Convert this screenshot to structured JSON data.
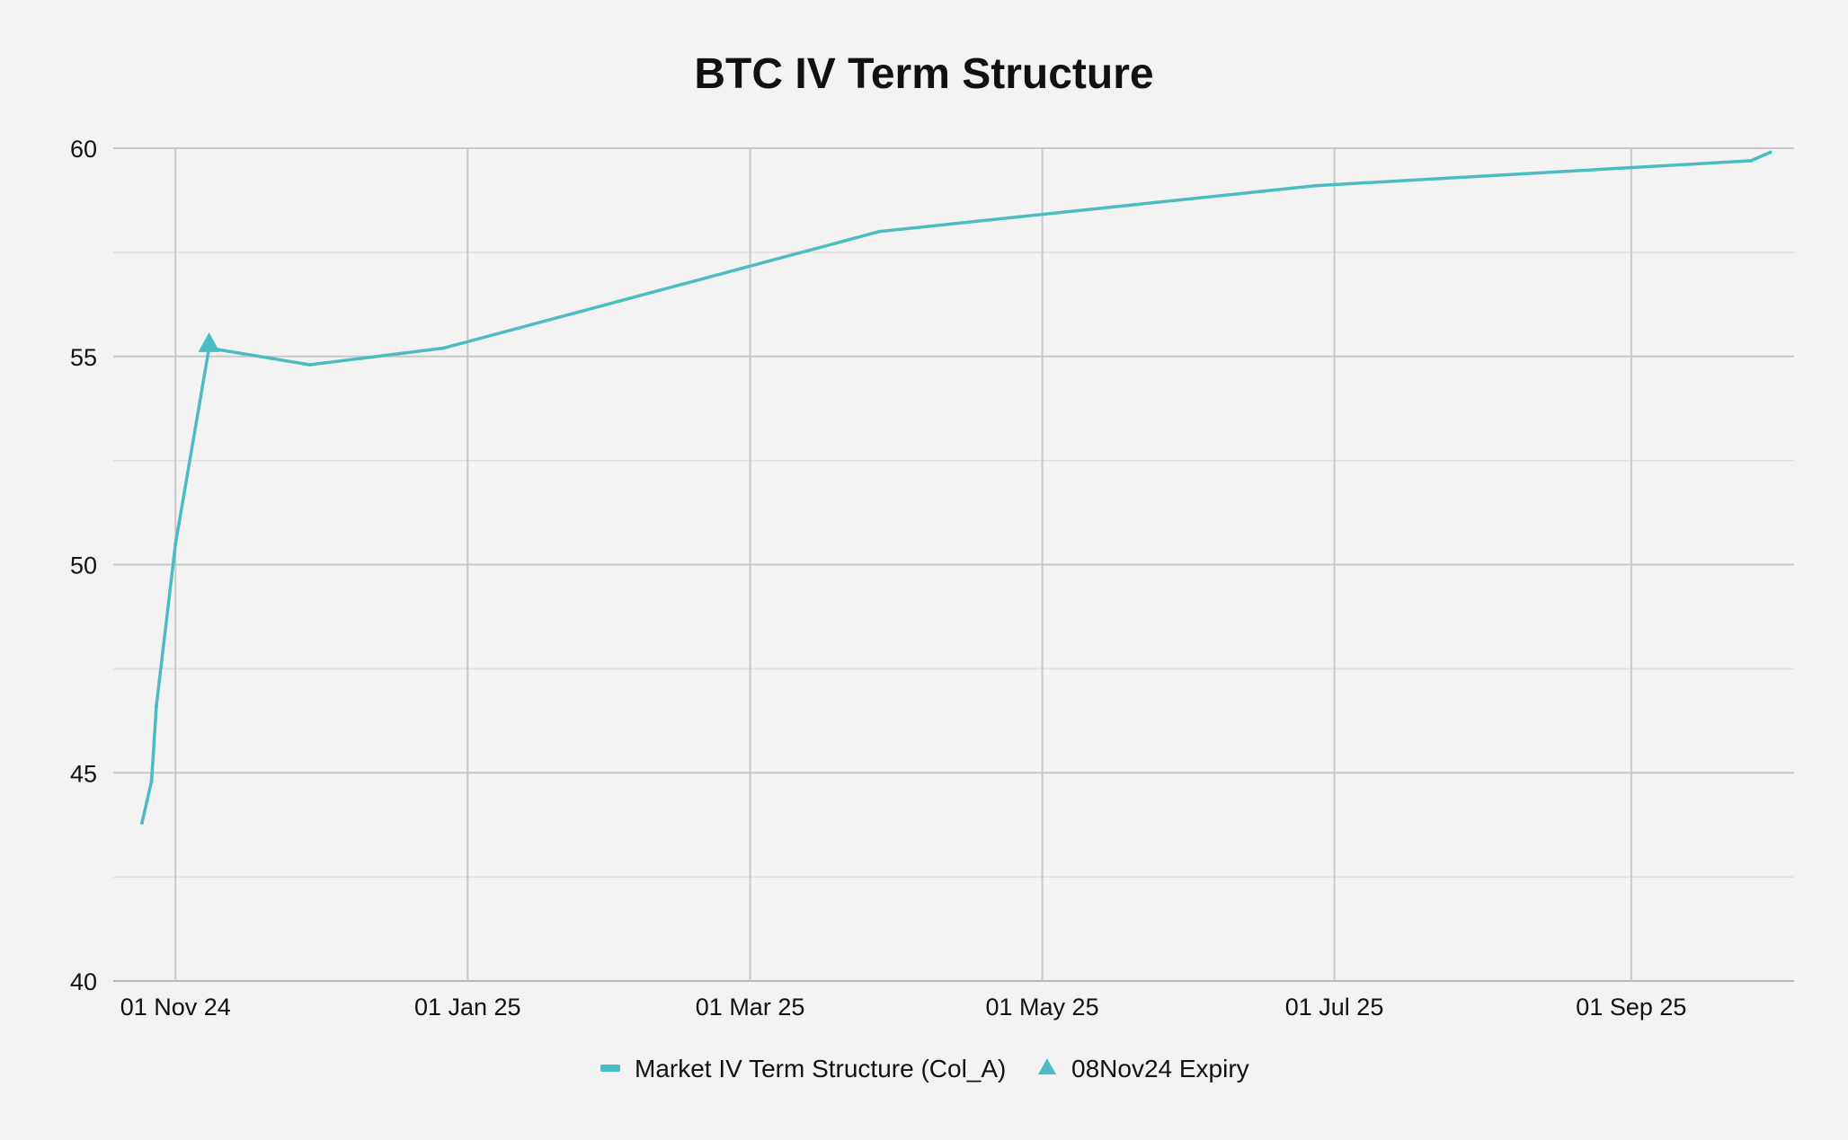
{
  "chart_data": {
    "type": "line",
    "title": "BTC IV Term Structure",
    "xlabel": "",
    "ylabel": "",
    "x_axis_type": "date",
    "xlim": [
      "2024-10-19",
      "2025-10-05"
    ],
    "ylim": [
      40,
      60
    ],
    "grid": true,
    "legend_position": "bottom-center",
    "y_ticks": [
      40,
      45,
      50,
      55,
      60
    ],
    "x_ticks": [
      {
        "date": "2024-11-01",
        "label": "01 Nov 24"
      },
      {
        "date": "2025-01-01",
        "label": "01 Jan 25"
      },
      {
        "date": "2025-03-01",
        "label": "01 Mar 25"
      },
      {
        "date": "2025-05-01",
        "label": "01 May 25"
      },
      {
        "date": "2025-07-01",
        "label": "01 Jul 25"
      },
      {
        "date": "2025-09-01",
        "label": "01 Sep 25"
      }
    ],
    "series": [
      {
        "name": "Market IV Term Structure (Col_A)",
        "color": "#4bbcc3",
        "x": [
          "2024-10-25",
          "2024-10-25",
          "2024-10-26",
          "2024-10-27",
          "2024-10-28",
          "2024-11-01",
          "2024-11-08",
          "2024-11-29",
          "2024-12-27",
          "2025-03-28",
          "2025-06-27",
          "2025-09-26",
          "2025-09-30"
        ],
        "y": [
          43.8,
          43.8,
          44.3,
          44.8,
          46.6,
          50.5,
          55.2,
          54.8,
          55.2,
          58.0,
          59.1,
          59.7,
          59.9
        ]
      },
      {
        "name": "08Nov24 Expiry",
        "color": "#4bbcc3",
        "marker": "triangle",
        "x": [
          "2024-11-08"
        ],
        "y": [
          55.3
        ]
      }
    ]
  }
}
